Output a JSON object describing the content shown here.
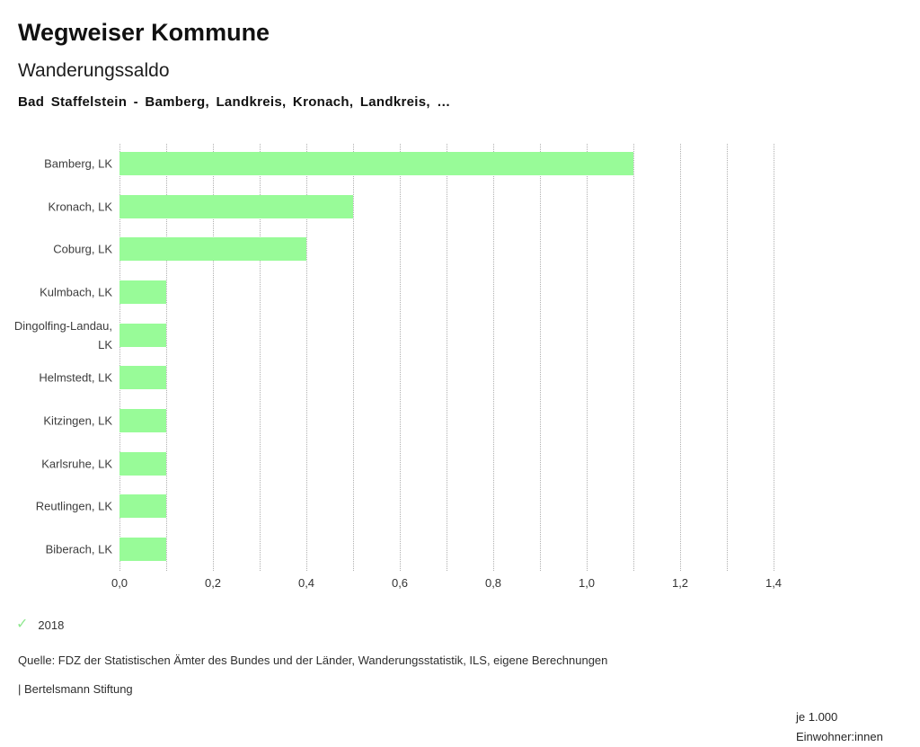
{
  "header": {
    "title": "Wegweiser Kommune",
    "subtitle": "Wanderungssaldo",
    "selection": "Bad Staffelstein - Bamberg, Landkreis, Kronach, Landkreis, …"
  },
  "chart_data": {
    "type": "bar",
    "orientation": "horizontal",
    "title": "Wanderungssaldo",
    "categories": [
      "Bamberg, LK",
      "Kronach, LK",
      "Coburg, LK",
      "Kulmbach, LK",
      "Dingolfing-Landau, LK",
      "Helmstedt, LK",
      "Kitzingen, LK",
      "Karlsruhe, LK",
      "Reutlingen, LK",
      "Biberach, LK"
    ],
    "series": [
      {
        "name": "2018",
        "values": [
          1.1,
          0.5,
          0.4,
          0.1,
          0.1,
          0.1,
          0.1,
          0.1,
          0.1,
          0.1
        ]
      }
    ],
    "x_axis": {
      "xlim": [
        0,
        1.4
      ],
      "tick_values": [
        0,
        0.2,
        0.4,
        0.6,
        0.8,
        1.0,
        1.2,
        1.4
      ],
      "tick_labels": [
        "0,0",
        "0,2",
        "0,4",
        "0,6",
        "0,8",
        "1,0",
        "1,2",
        "1,4"
      ],
      "gridline_step": 0.1,
      "grid_style": "dotted",
      "unit_label": "je 1.000 Einwohner:innen"
    },
    "legend": [
      {
        "label": "2018",
        "icon": "check-icon",
        "checked": true
      }
    ],
    "colors": {
      "bar": "#98fb98",
      "gridline": "#b0b0b0",
      "check": "#90e890"
    },
    "legend_position": "bottom-left",
    "grid": true
  },
  "footer": {
    "source": "Quelle: FDZ der Statistischen Ämter des Bundes und der Länder, Wanderungsstatistik, ILS, eigene Berechnungen",
    "attribution": "| Bertelsmann Stiftung"
  },
  "icons": {
    "legend_check": "✓"
  }
}
